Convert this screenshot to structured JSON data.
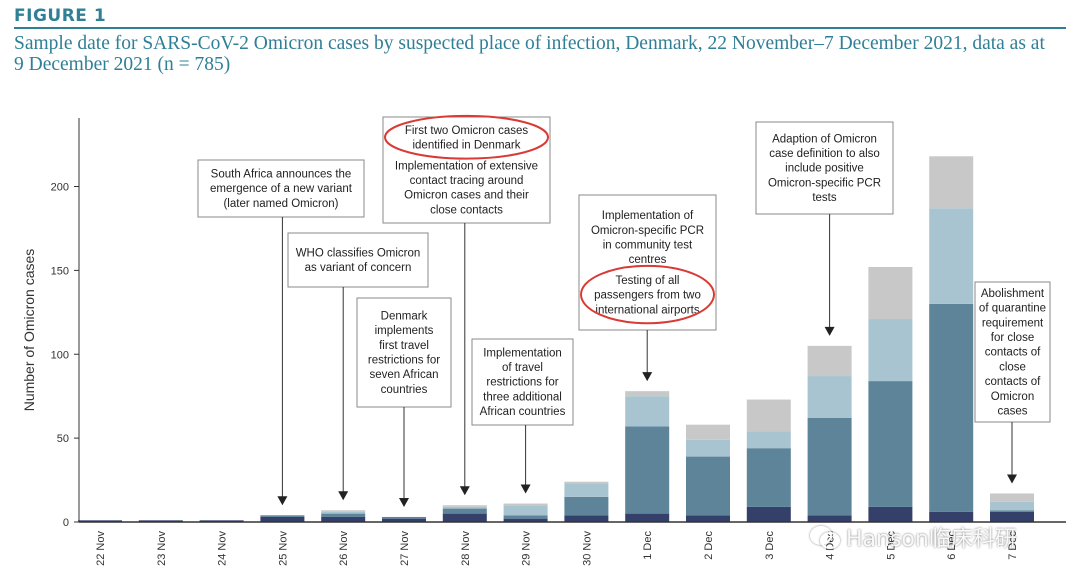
{
  "figure": {
    "label": "Figure 1",
    "title": "Sample date for SARS-CoV-2 Omicron cases by suspected place of infection, Denmark, 22 November–7 December 2021, data as at 9 December 2021 (n = 785)"
  },
  "colors": {
    "series": [
      "#35406a",
      "#5d8499",
      "#a9c4d1",
      "#c8c8c8"
    ],
    "axis": "#333333",
    "highlight_ring": "#d93a35",
    "title": "#2f7f96"
  },
  "chart_data": {
    "type": "bar",
    "stacked": true,
    "categories": [
      "22 Nov",
      "23 Nov",
      "24 Nov",
      "25 Nov",
      "26 Nov",
      "27 Nov",
      "28 Nov",
      "29 Nov",
      "30 Nov",
      "1 Dec",
      "2 Dec",
      "3 Dec",
      "4 Dec",
      "5 Dec",
      "6 Dec",
      "7 Dec"
    ],
    "series": [
      {
        "values": [
          1,
          1,
          1,
          3,
          3,
          2,
          5,
          2,
          4,
          5,
          4,
          9,
          4,
          9,
          6,
          6
        ]
      },
      {
        "values": [
          0,
          0,
          0,
          1,
          2,
          1,
          3,
          2,
          11,
          52,
          35,
          35,
          58,
          75,
          124,
          1
        ]
      },
      {
        "values": [
          0,
          0,
          0,
          0,
          1,
          0,
          1,
          6,
          8,
          18,
          10,
          10,
          25,
          37,
          57,
          5
        ]
      },
      {
        "values": [
          0,
          0,
          0,
          0,
          1,
          0,
          1,
          1,
          1,
          3,
          9,
          19,
          18,
          31,
          31,
          5
        ]
      }
    ],
    "xlabel": "",
    "ylabel": "Number of Omicron cases",
    "y_ticks": [
      0,
      50,
      100,
      150,
      200
    ],
    "ylim": [
      0,
      240
    ],
    "grid": false,
    "legend": "none"
  },
  "annotations": [
    {
      "lines": [
        "South Africa  announces the",
        "emergence of a new variant",
        "(later named Omicron)"
      ],
      "target": "25 Nov"
    },
    {
      "lines": [
        "WHO classifies Omicron",
        "as variant of concern"
      ],
      "target": "26 Nov"
    },
    {
      "lines": [
        "Denmark",
        "implements",
        "first travel",
        "restrictions for",
        "seven African",
        "countries"
      ],
      "target": "27 Nov"
    },
    {
      "lines": [
        "First two Omicron cases",
        "identified in Denmark",
        "Implementation of extensive",
        "contact tracing around",
        "Omicron cases and their",
        "close contacts"
      ],
      "target": "28 Nov",
      "highlight_first_lines": 2
    },
    {
      "lines": [
        "Implementation",
        "of travel",
        "restrictions for",
        "three additional",
        "African countries"
      ],
      "target": "29 Nov"
    },
    {
      "lines": [
        "Implementation of",
        "Omicron-specific PCR",
        "in community test",
        "centres",
        "Testing of all",
        "passengers from two",
        "international airports"
      ],
      "target": "1 Dec",
      "highlight_last_lines": 3
    },
    {
      "lines": [
        "Adaption of Omicron",
        "case definition to also",
        "include positive",
        "Omicron-specific PCR",
        "tests"
      ],
      "target": "4 Dec"
    },
    {
      "lines": [
        "Abolishment",
        "of quarantine",
        "requirement",
        "for close",
        "contacts of",
        "close",
        "contacts of",
        "Omicron",
        "cases"
      ],
      "target": "7 Dec"
    }
  ],
  "watermark": {
    "text": "Hanson临床科研",
    "icon": "wechat-icon"
  }
}
